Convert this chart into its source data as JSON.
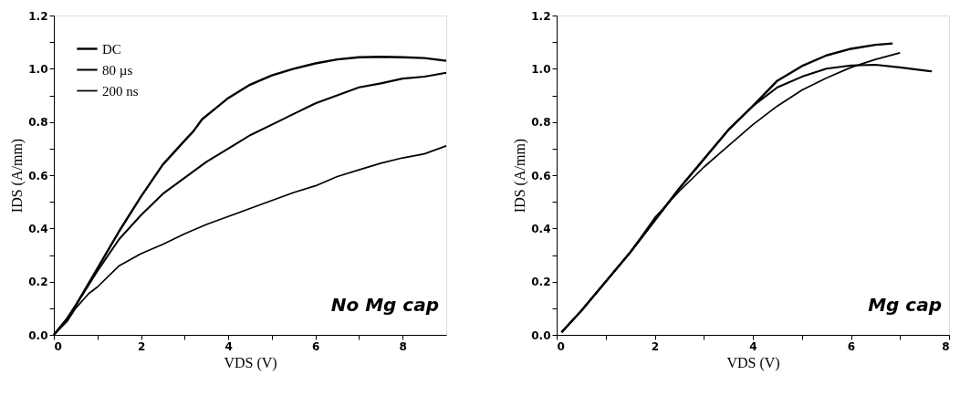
{
  "chart_data": [
    {
      "type": "line",
      "xlabel": "VDS (V)",
      "ylabel": "IDS (A/mm)",
      "annotations": [
        "No Mg cap"
      ],
      "legend": "top left",
      "grid": false,
      "line_style": "solid",
      "xlim": [
        0,
        9
      ],
      "ylim": [
        0,
        1.2
      ],
      "xticks": [
        0,
        {
          "value": 1,
          "label": null
        },
        2,
        {
          "value": 3,
          "label": null
        },
        4,
        {
          "value": 5,
          "label": null
        },
        6,
        {
          "value": 7,
          "label": null
        },
        8
      ],
      "yticks": [
        {
          "value": 0,
          "label": "0.0"
        },
        {
          "value": 0.1,
          "label": null
        },
        {
          "value": 0.2,
          "label": "0.2"
        },
        {
          "value": 0.3,
          "label": null
        },
        {
          "value": 0.4,
          "label": "0.4"
        },
        {
          "value": 0.5,
          "label": null
        },
        {
          "value": 0.6,
          "label": "0.6"
        },
        {
          "value": 0.7,
          "label": null
        },
        {
          "value": 0.8,
          "label": "0.8"
        },
        {
          "value": 0.9,
          "label": null
        },
        {
          "value": 1.0,
          "label": "1.0"
        },
        {
          "value": 1.1,
          "label": null
        },
        {
          "value": 1.2,
          "label": "1.2"
        }
      ],
      "series": [
        {
          "name": "DC",
          "color": "#000000",
          "x": [
            0,
            0.3,
            0.5,
            1,
            1.5,
            2,
            2.5,
            3,
            3.2,
            3.4,
            3.7,
            4,
            4.5,
            5,
            5.5,
            6,
            6.5,
            7,
            7.5,
            8,
            8.5,
            9
          ],
          "values": [
            0,
            0.06,
            0.11,
            0.25,
            0.39,
            0.52,
            0.64,
            0.73,
            0.765,
            0.81,
            0.85,
            0.89,
            0.94,
            0.975,
            1.0,
            1.02,
            1.035,
            1.043,
            1.045,
            1.043,
            1.04,
            1.03
          ]
        },
        {
          "name": "80 µs",
          "color": "#000000",
          "x": [
            0,
            0.3,
            0.5,
            1,
            1.5,
            2,
            2.5,
            3,
            3.5,
            4,
            4.5,
            5,
            5.5,
            6,
            6.5,
            7,
            7.5,
            8,
            8.5,
            9
          ],
          "values": [
            0,
            0.06,
            0.11,
            0.24,
            0.36,
            0.45,
            0.53,
            0.59,
            0.65,
            0.7,
            0.75,
            0.79,
            0.83,
            0.87,
            0.9,
            0.93,
            0.945,
            0.963,
            0.97,
            0.985
          ]
        },
        {
          "name": "200 ns",
          "color": "#000000",
          "x": [
            0,
            0.3,
            0.5,
            0.8,
            1,
            1.5,
            2,
            2.5,
            3,
            3.5,
            4,
            4.5,
            5,
            5.5,
            6,
            6.5,
            7,
            7.5,
            8,
            8.5,
            9
          ],
          "values": [
            0,
            0.05,
            0.1,
            0.155,
            0.18,
            0.26,
            0.305,
            0.34,
            0.38,
            0.415,
            0.445,
            0.475,
            0.505,
            0.535,
            0.56,
            0.595,
            0.62,
            0.645,
            0.665,
            0.68,
            0.71
          ]
        }
      ]
    },
    {
      "type": "line",
      "xlabel": "VDS (V)",
      "ylabel": "IDS (A/mm)",
      "annotations": [
        "Mg cap"
      ],
      "legend": "top left",
      "grid": false,
      "line_style": "solid",
      "xlim": [
        0,
        8
      ],
      "ylim": [
        0,
        1.2
      ],
      "xticks": [
        0,
        {
          "value": 1,
          "label": null
        },
        2,
        {
          "value": 3,
          "label": null
        },
        4,
        {
          "value": 5,
          "label": null
        },
        6,
        {
          "value": 7,
          "label": null
        },
        8
      ],
      "yticks": [
        {
          "value": 0,
          "label": "0.0"
        },
        {
          "value": 0.1,
          "label": null
        },
        {
          "value": 0.2,
          "label": "0.2"
        },
        {
          "value": 0.3,
          "label": null
        },
        {
          "value": 0.4,
          "label": "0.4"
        },
        {
          "value": 0.5,
          "label": null
        },
        {
          "value": 0.6,
          "label": "0.6"
        },
        {
          "value": 0.7,
          "label": null
        },
        {
          "value": 0.8,
          "label": "0.8"
        },
        {
          "value": 0.9,
          "label": null
        },
        {
          "value": 1.0,
          "label": "1.0"
        },
        {
          "value": 1.1,
          "label": null
        },
        {
          "value": 1.2,
          "label": "1.2"
        }
      ],
      "series": [
        {
          "name": "DC",
          "color": "#000000",
          "x": [
            0.1,
            0.5,
            1,
            1.5,
            2,
            2.5,
            3,
            3.5,
            4,
            4.5,
            5,
            5.5,
            6,
            6.5,
            6.85
          ],
          "values": [
            0.01,
            0.09,
            0.2,
            0.31,
            0.43,
            0.55,
            0.66,
            0.77,
            0.86,
            0.955,
            1.01,
            1.05,
            1.075,
            1.09,
            1.095
          ]
        },
        {
          "name": "80 µs",
          "color": "#000000",
          "x": [
            0.1,
            0.5,
            1,
            1.5,
            2,
            2.5,
            3,
            3.5,
            4,
            4.5,
            5,
            5.5,
            6,
            6.5,
            7,
            7.65
          ],
          "values": [
            0.01,
            0.09,
            0.2,
            0.31,
            0.43,
            0.55,
            0.66,
            0.77,
            0.86,
            0.93,
            0.97,
            1.0,
            1.012,
            1.015,
            1.005,
            0.99
          ]
        },
        {
          "name": "200 ns",
          "color": "#000000",
          "x": [
            0.1,
            0.5,
            1,
            1.5,
            2,
            2.5,
            3,
            3.5,
            4,
            4.5,
            5,
            5.5,
            6,
            6.5,
            7
          ],
          "values": [
            0.01,
            0.09,
            0.2,
            0.31,
            0.44,
            0.54,
            0.63,
            0.71,
            0.79,
            0.86,
            0.92,
            0.965,
            1.005,
            1.035,
            1.06
          ]
        }
      ]
    }
  ]
}
